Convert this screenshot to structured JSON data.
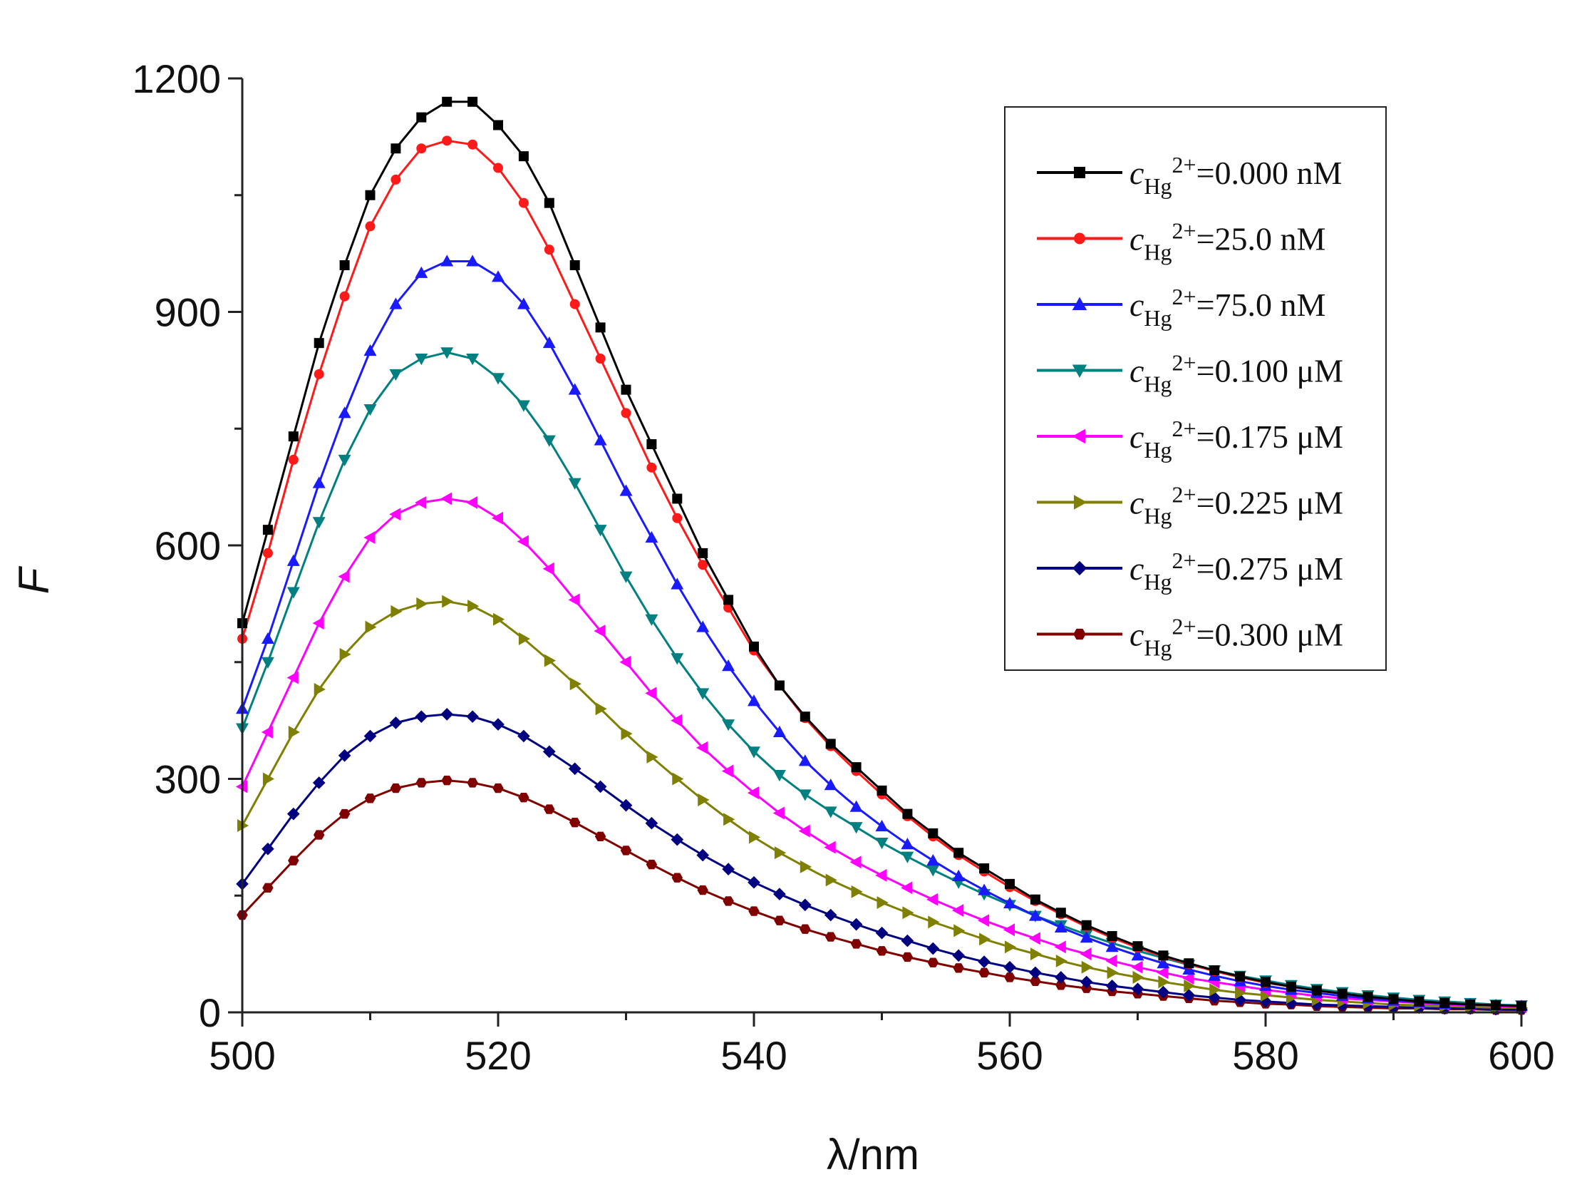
{
  "chart_data": {
    "type": "line",
    "title": "",
    "xlabel": "λ/nm",
    "ylabel": "F",
    "xlim": [
      500,
      600
    ],
    "ylim": [
      0,
      1200
    ],
    "xticks": [
      500,
      520,
      540,
      560,
      580,
      600
    ],
    "yticks": [
      0,
      300,
      600,
      900,
      1200
    ],
    "grid": false,
    "legend_position": "top-right",
    "x": [
      500,
      502,
      504,
      506,
      508,
      510,
      512,
      514,
      516,
      518,
      520,
      522,
      524,
      526,
      528,
      530,
      532,
      534,
      536,
      538,
      540,
      542,
      544,
      546,
      548,
      550,
      552,
      554,
      556,
      558,
      560,
      562,
      564,
      566,
      568,
      570,
      572,
      574,
      576,
      578,
      580,
      582,
      584,
      586,
      588,
      590,
      592,
      594,
      596,
      598,
      600
    ],
    "series": [
      {
        "name": "c_Hg2+=0.000 nM",
        "legend_prefix": "c",
        "legend_sub": "Hg",
        "legend_sup": "2+",
        "legend_value": "=0.000 nM",
        "color": "#000000",
        "marker": "square",
        "values": [
          500,
          620,
          740,
          860,
          960,
          1050,
          1110,
          1150,
          1170,
          1170,
          1140,
          1100,
          1040,
          960,
          880,
          800,
          730,
          660,
          590,
          530,
          470,
          420,
          380,
          345,
          315,
          285,
          255,
          230,
          205,
          185,
          165,
          145,
          128,
          112,
          98,
          85,
          73,
          63,
          54,
          46,
          39,
          33,
          28,
          24,
          20,
          17,
          14,
          12,
          10,
          9,
          8
        ]
      },
      {
        "name": "c_Hg2+=25.0 nM",
        "legend_prefix": "c",
        "legend_sub": "Hg",
        "legend_sup": "2+",
        "legend_value": "=25.0 nM",
        "color": "#ff1a1a",
        "marker": "circle",
        "values": [
          480,
          590,
          710,
          820,
          920,
          1010,
          1070,
          1110,
          1120,
          1115,
          1085,
          1040,
          980,
          910,
          840,
          770,
          700,
          635,
          575,
          520,
          465,
          420,
          378,
          342,
          310,
          280,
          252,
          226,
          202,
          181,
          161,
          143,
          126,
          110,
          96,
          83,
          72,
          62,
          53,
          45,
          38,
          33,
          28,
          24,
          20,
          17,
          14,
          12,
          10,
          9,
          8
        ]
      },
      {
        "name": "c_Hg2+=75.0 nM",
        "legend_prefix": "c",
        "legend_sub": "Hg",
        "legend_sup": "2+",
        "legend_value": "=75.0 nM",
        "color": "#1a1aff",
        "marker": "triangle-up",
        "values": [
          390,
          480,
          580,
          680,
          770,
          850,
          910,
          950,
          965,
          965,
          945,
          910,
          860,
          800,
          735,
          670,
          610,
          550,
          495,
          445,
          400,
          360,
          323,
          292,
          264,
          239,
          216,
          195,
          175,
          157,
          140,
          124,
          109,
          96,
          84,
          73,
          63,
          55,
          47,
          40,
          34,
          29,
          25,
          21,
          18,
          15,
          13,
          11,
          10,
          9,
          8
        ]
      },
      {
        "name": "c_Hg2+=0.100 μM",
        "legend_prefix": "c",
        "legend_sub": "Hg",
        "legend_sup": "2+",
        "legend_value": "=0.100 μM",
        "color": "#008080",
        "marker": "triangle-down",
        "values": [
          365,
          450,
          540,
          630,
          710,
          775,
          820,
          840,
          848,
          840,
          815,
          780,
          735,
          680,
          620,
          560,
          505,
          455,
          410,
          370,
          335,
          305,
          280,
          258,
          238,
          218,
          200,
          183,
          167,
          152,
          138,
          124,
          112,
          100,
          89,
          79,
          70,
          61,
          54,
          47,
          41,
          35,
          30,
          26,
          22,
          19,
          16,
          14,
          12,
          10,
          9
        ]
      },
      {
        "name": "c_Hg2+=0.175 μM",
        "legend_prefix": "c",
        "legend_sub": "Hg",
        "legend_sup": "2+",
        "legend_value": "=0.175 μM",
        "color": "#ff00ff",
        "marker": "triangle-left",
        "values": [
          290,
          360,
          430,
          500,
          560,
          610,
          640,
          655,
          660,
          655,
          635,
          605,
          570,
          530,
          490,
          450,
          410,
          375,
          340,
          310,
          282,
          256,
          233,
          212,
          193,
          176,
          160,
          145,
          131,
          118,
          106,
          95,
          84,
          75,
          66,
          58,
          51,
          44,
          39,
          34,
          29,
          25,
          21,
          18,
          16,
          14,
          12,
          10,
          9,
          8,
          7
        ]
      },
      {
        "name": "c_Hg2+=0.225 μM",
        "legend_prefix": "c",
        "legend_sub": "Hg",
        "legend_sup": "2+",
        "legend_value": "=0.225 μM",
        "color": "#808000",
        "marker": "triangle-right",
        "values": [
          240,
          300,
          360,
          415,
          460,
          495,
          515,
          525,
          528,
          522,
          505,
          480,
          452,
          422,
          390,
          358,
          328,
          300,
          273,
          248,
          225,
          205,
          187,
          170,
          155,
          141,
          128,
          116,
          105,
          94,
          84,
          75,
          66,
          58,
          51,
          45,
          39,
          34,
          29,
          25,
          22,
          19,
          16,
          14,
          12,
          10,
          9,
          8,
          7,
          6,
          6
        ]
      },
      {
        "name": "c_Hg2+=0.275 μM",
        "legend_prefix": "c",
        "legend_sub": "Hg",
        "legend_sup": "2+",
        "legend_value": "=0.275 μM",
        "color": "#000080",
        "marker": "diamond",
        "values": [
          165,
          210,
          255,
          295,
          330,
          355,
          372,
          380,
          383,
          380,
          370,
          355,
          335,
          313,
          290,
          266,
          243,
          222,
          202,
          184,
          167,
          152,
          138,
          125,
          113,
          102,
          92,
          82,
          73,
          65,
          58,
          51,
          45,
          39,
          34,
          30,
          26,
          22,
          19,
          16,
          14,
          12,
          10,
          9,
          8,
          7,
          6,
          5,
          5,
          4,
          4
        ]
      },
      {
        "name": "c_Hg2+=0.300 μM",
        "legend_prefix": "c",
        "legend_sub": "Hg",
        "legend_sup": "2+",
        "legend_value": "=0.300 μM",
        "color": "#800000",
        "marker": "hexagon",
        "values": [
          125,
          160,
          195,
          228,
          255,
          275,
          288,
          295,
          298,
          295,
          288,
          276,
          261,
          244,
          226,
          208,
          190,
          173,
          157,
          143,
          130,
          118,
          107,
          97,
          88,
          79,
          71,
          64,
          57,
          51,
          45,
          40,
          35,
          31,
          27,
          24,
          21,
          18,
          15,
          13,
          11,
          10,
          8,
          7,
          6,
          5,
          5,
          4,
          4,
          3,
          3
        ]
      }
    ]
  }
}
